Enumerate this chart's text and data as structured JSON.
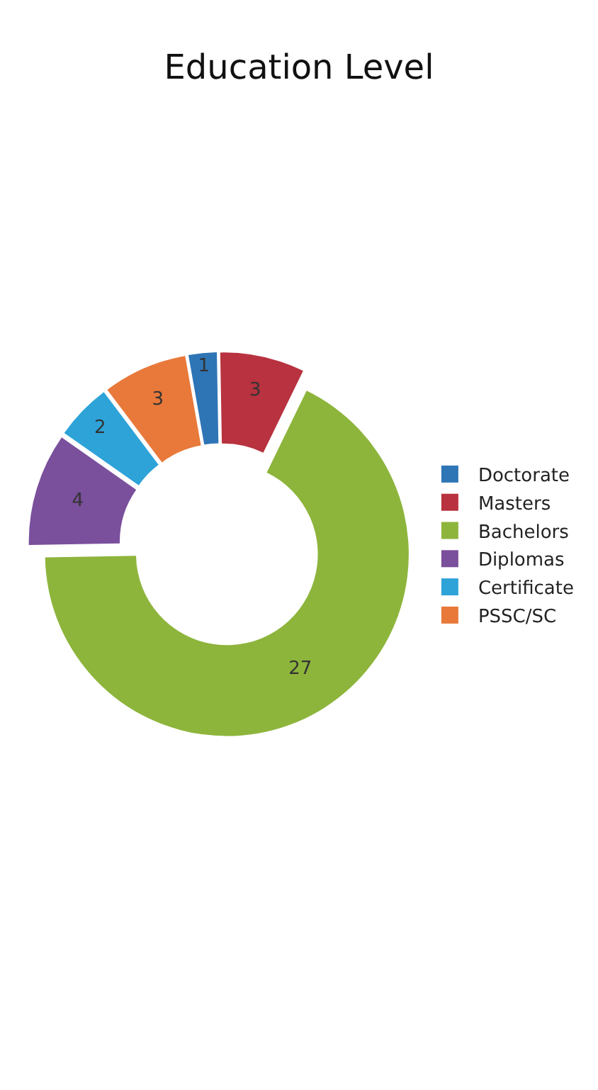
{
  "chart_data": {
    "type": "donut",
    "title": "Education Level",
    "categories": [
      "Doctorate",
      "Masters",
      "Bachelors",
      "Diplomas",
      "Certificate",
      "PSSC/SC"
    ],
    "values": [
      1,
      3,
      27,
      4,
      2,
      3
    ],
    "colors": [
      "#2e75b6",
      "#b8323f",
      "#8db53c",
      "#7a4f9c",
      "#2ea3d8",
      "#e8793a"
    ],
    "data_labels": true,
    "legend": "right"
  }
}
